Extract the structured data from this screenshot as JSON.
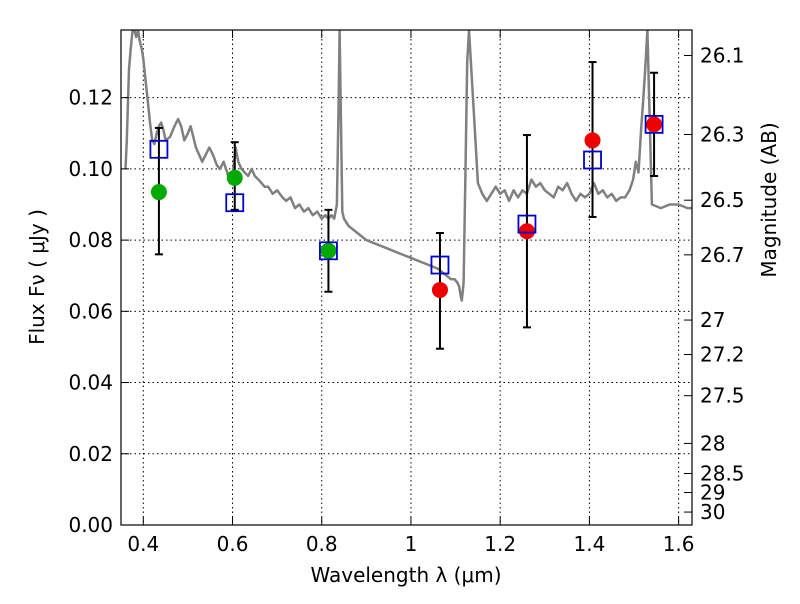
{
  "chart_data": {
    "type": "scatter",
    "title": "",
    "xlabel": "Wavelength  λ (μm)",
    "ylabel": "Flux  Fν  ( μJy )",
    "y2label": "Magnitude (AB)",
    "xlim": [
      0.35,
      1.63
    ],
    "ylim": [
      0.0,
      0.139
    ],
    "grid": true,
    "xticks": [
      0.4,
      0.6,
      0.8,
      1.0,
      1.2,
      1.4,
      1.6
    ],
    "xtick_labels": [
      "0.4",
      "0.6",
      "0.8",
      "1",
      "1.2",
      "1.4",
      "1.6"
    ],
    "yticks": [
      0.0,
      0.02,
      0.04,
      0.06,
      0.08,
      0.1,
      0.12
    ],
    "ytick_labels": [
      "0.00",
      "0.02",
      "0.04",
      "0.06",
      "0.08",
      "0.10",
      "0.12"
    ],
    "y2ticks": [
      26.1,
      26.3,
      26.5,
      26.7,
      27,
      27.2,
      27.5,
      28,
      28.5,
      29,
      30
    ],
    "y2tick_labels": [
      "26.1",
      "26.3",
      "26.5",
      "26.7",
      "27",
      "27.2",
      "27.5",
      "28",
      "28.5",
      "29",
      "30"
    ],
    "colors": {
      "spectrum": "#808080",
      "model_square": "#0000cc",
      "green_point": "#00aa00",
      "red_point": "#ee0000",
      "errorbar": "#000000"
    },
    "spectrum": {
      "x": [
        0.36,
        0.363,
        0.368,
        0.372,
        0.376,
        0.38,
        0.384,
        0.388,
        0.392,
        0.396,
        0.4,
        0.405,
        0.41,
        0.415,
        0.42,
        0.425,
        0.43,
        0.435,
        0.44,
        0.445,
        0.45,
        0.46,
        0.47,
        0.478,
        0.485,
        0.492,
        0.5,
        0.506,
        0.512,
        0.518,
        0.525,
        0.532,
        0.54,
        0.548,
        0.556,
        0.565,
        0.572,
        0.58,
        0.588,
        0.594,
        0.6,
        0.607,
        0.613,
        0.62,
        0.627,
        0.635,
        0.643,
        0.65,
        0.658,
        0.665,
        0.672,
        0.68,
        0.69,
        0.7,
        0.712,
        0.72,
        0.73,
        0.74,
        0.75,
        0.76,
        0.77,
        0.78,
        0.79,
        0.8,
        0.808,
        0.815,
        0.822,
        0.828,
        0.834,
        0.838,
        0.84,
        0.842,
        0.846,
        0.85,
        0.86,
        0.88,
        0.9,
        0.92,
        0.94,
        0.96,
        0.98,
        1.0,
        1.02,
        1.04,
        1.06,
        1.07,
        1.08,
        1.09,
        1.098,
        1.104,
        1.108,
        1.112,
        1.114,
        1.118,
        1.122,
        1.126,
        1.13,
        1.14,
        1.15,
        1.16,
        1.17,
        1.18,
        1.19,
        1.2,
        1.21,
        1.22,
        1.23,
        1.24,
        1.25,
        1.26,
        1.27,
        1.28,
        1.29,
        1.3,
        1.31,
        1.32,
        1.33,
        1.34,
        1.35,
        1.36,
        1.37,
        1.38,
        1.39,
        1.4,
        1.41,
        1.42,
        1.43,
        1.44,
        1.45,
        1.46,
        1.47,
        1.48,
        1.49,
        1.498,
        1.504,
        1.51,
        1.516,
        1.52,
        1.525,
        1.53,
        1.54,
        1.56,
        1.58,
        1.6,
        1.62,
        1.63
      ],
      "y": [
        0.1,
        0.108,
        0.128,
        0.134,
        0.139,
        0.139,
        0.137,
        0.139,
        0.136,
        0.134,
        0.131,
        0.125,
        0.119,
        0.113,
        0.108,
        0.107,
        0.11,
        0.112,
        0.113,
        0.111,
        0.108,
        0.109,
        0.112,
        0.114,
        0.112,
        0.108,
        0.11,
        0.112,
        0.109,
        0.106,
        0.104,
        0.102,
        0.104,
        0.106,
        0.104,
        0.101,
        0.1,
        0.102,
        0.099,
        0.096,
        0.098,
        0.106,
        0.102,
        0.1,
        0.099,
        0.098,
        0.1,
        0.098,
        0.097,
        0.096,
        0.095,
        0.095,
        0.093,
        0.094,
        0.092,
        0.091,
        0.092,
        0.089,
        0.09,
        0.088,
        0.089,
        0.087,
        0.088,
        0.086,
        0.087,
        0.086,
        0.087,
        0.086,
        0.09,
        0.12,
        0.139,
        0.122,
        0.088,
        0.086,
        0.084,
        0.082,
        0.08,
        0.079,
        0.078,
        0.077,
        0.076,
        0.075,
        0.074,
        0.073,
        0.072,
        0.071,
        0.07,
        0.069,
        0.069,
        0.068,
        0.067,
        0.064,
        0.063,
        0.068,
        0.098,
        0.13,
        0.139,
        0.118,
        0.096,
        0.093,
        0.091,
        0.093,
        0.095,
        0.093,
        0.094,
        0.091,
        0.094,
        0.092,
        0.094,
        0.093,
        0.097,
        0.095,
        0.096,
        0.094,
        0.093,
        0.092,
        0.095,
        0.094,
        0.096,
        0.093,
        0.091,
        0.093,
        0.092,
        0.093,
        0.096,
        0.093,
        0.094,
        0.092,
        0.093,
        0.091,
        0.092,
        0.092,
        0.094,
        0.097,
        0.102,
        0.099,
        0.111,
        0.118,
        0.128,
        0.139,
        0.09,
        0.089,
        0.09,
        0.09,
        0.089,
        0.089
      ]
    },
    "series": [
      {
        "marker": "circle",
        "color": "green",
        "x": [
          0.435,
          0.605,
          0.815
        ],
        "y": [
          0.0935,
          0.0975,
          0.077
        ]
      },
      {
        "marker": "circle",
        "color": "red",
        "x": [
          1.065,
          1.26,
          1.407,
          1.545
        ],
        "y": [
          0.066,
          0.0825,
          0.108,
          0.1125
        ]
      },
      {
        "marker": "square",
        "color": "blue",
        "x": [
          0.435,
          0.605,
          0.815,
          1.065,
          1.26,
          1.407,
          1.545
        ],
        "y": [
          0.1055,
          0.0905,
          0.077,
          0.073,
          0.0845,
          0.1025,
          0.1125
        ]
      }
    ],
    "errorbars": {
      "x": [
        0.435,
        0.605,
        0.815,
        1.065,
        1.26,
        1.407,
        1.545
      ],
      "y": [
        0.0935,
        0.0975,
        0.077,
        0.066,
        0.0825,
        0.108,
        0.1125
      ],
      "low": [
        0.076,
        0.0885,
        0.0655,
        0.0495,
        0.0555,
        0.0865,
        0.098
      ],
      "high": [
        0.1115,
        0.1075,
        0.0885,
        0.082,
        0.1095,
        0.13,
        0.127
      ]
    }
  }
}
